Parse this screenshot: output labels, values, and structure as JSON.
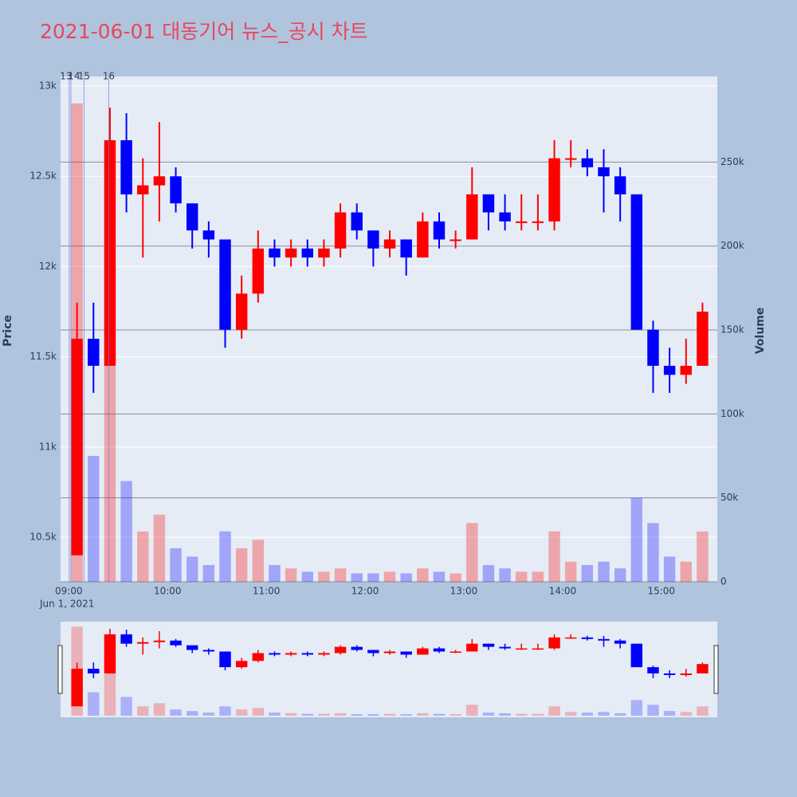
{
  "chart_data": {
    "type": "candlestick",
    "title": "2021-06-01 대동기어 뉴스_공시 차트",
    "y_title": "Price",
    "y2_title": "Volume",
    "x_date_label": "Jun 1, 2021",
    "increasing_color": "#ff0000",
    "decreasing_color": "#0000ff",
    "xlim": [
      "2021-06-01 08:55",
      "2021-06-01 15:34"
    ],
    "xticks": [
      {
        "value": "2021-06-01 09:00",
        "label": "09:00"
      },
      {
        "value": "2021-06-01 10:00",
        "label": "10:00"
      },
      {
        "value": "2021-06-01 11:00",
        "label": "11:00"
      },
      {
        "value": "2021-06-01 12:00",
        "label": "12:00"
      },
      {
        "value": "2021-06-01 13:00",
        "label": "13:00"
      },
      {
        "value": "2021-06-01 14:00",
        "label": "14:00"
      },
      {
        "value": "2021-06-01 15:00",
        "label": "15:00"
      }
    ],
    "ylim": [
      10253,
      13053
    ],
    "yticks": [
      {
        "value": 10500,
        "label": "10.5k"
      },
      {
        "value": 11000,
        "label": "11k"
      },
      {
        "value": 11500,
        "label": "11.5k"
      },
      {
        "value": 12000,
        "label": "12k"
      },
      {
        "value": 12500,
        "label": "12.5k"
      },
      {
        "value": 13000,
        "label": "13k"
      }
    ],
    "y2lim": [
      0,
      301000
    ],
    "y2ticks": [
      0,
      {
        "value": 50000,
        "label": "50k"
      },
      {
        "value": 100000,
        "label": "100k"
      },
      {
        "value": 150000,
        "label": "150k"
      },
      {
        "value": 200000,
        "label": "200k"
      },
      {
        "value": 250000,
        "label": "250k"
      }
    ],
    "annotations": [
      {
        "x": "2021-06-01 09:00",
        "text": "13"
      },
      {
        "x": "2021-06-01 09:01",
        "text": "14"
      },
      {
        "x": "2021-06-01 09:09",
        "text": "15"
      },
      {
        "x": "2021-06-01 09:24",
        "text": "16"
      }
    ],
    "x": [
      "2021-06-01 09:00",
      "2021-06-01 09:10",
      "2021-06-01 09:20",
      "2021-06-01 09:30",
      "2021-06-01 09:40",
      "2021-06-01 09:50",
      "2021-06-01 10:00",
      "2021-06-01 10:10",
      "2021-06-01 10:20",
      "2021-06-01 10:30",
      "2021-06-01 10:40",
      "2021-06-01 10:50",
      "2021-06-01 11:00",
      "2021-06-01 11:10",
      "2021-06-01 11:20",
      "2021-06-01 11:30",
      "2021-06-01 11:40",
      "2021-06-01 11:50",
      "2021-06-01 12:00",
      "2021-06-01 12:10",
      "2021-06-01 12:20",
      "2021-06-01 12:30",
      "2021-06-01 12:40",
      "2021-06-01 12:50",
      "2021-06-01 13:00",
      "2021-06-01 13:10",
      "2021-06-01 13:20",
      "2021-06-01 13:30",
      "2021-06-01 13:40",
      "2021-06-01 13:50",
      "2021-06-01 14:00",
      "2021-06-01 14:10",
      "2021-06-01 14:20",
      "2021-06-01 14:30",
      "2021-06-01 14:40",
      "2021-06-01 14:50",
      "2021-06-01 15:00",
      "2021-06-01 15:10",
      "2021-06-01 15:20"
    ],
    "open": [
      10400,
      11600,
      11450,
      12700,
      12400,
      12450,
      12500,
      12350,
      12200,
      12150,
      11650,
      11850,
      12100,
      12050,
      12100,
      12050,
      12100,
      12300,
      12200,
      12100,
      12150,
      12050,
      12250,
      12150,
      12150,
      12400,
      12300,
      12250,
      12250,
      12250,
      12600,
      12600,
      12550,
      12500,
      12400,
      11650,
      11450,
      11400,
      11450
    ],
    "high": [
      11800,
      11800,
      12880,
      12850,
      12600,
      12800,
      12550,
      12350,
      12250,
      12150,
      11950,
      12200,
      12150,
      12150,
      12150,
      12150,
      12350,
      12350,
      12200,
      12200,
      12150,
      12300,
      12300,
      12200,
      12550,
      12400,
      12400,
      12400,
      12400,
      12700,
      12700,
      12650,
      12650,
      12550,
      12400,
      11700,
      11550,
      11600,
      11800
    ],
    "low": [
      10400,
      11300,
      11450,
      12300,
      12050,
      12250,
      12300,
      12100,
      12050,
      11550,
      11600,
      11800,
      12000,
      12000,
      12000,
      12000,
      12050,
      12150,
      12000,
      12050,
      11950,
      12050,
      12100,
      12100,
      12150,
      12200,
      12200,
      12200,
      12200,
      12200,
      12550,
      12500,
      12300,
      12250,
      11650,
      11300,
      11300,
      11350,
      11450
    ],
    "close": [
      11600,
      11450,
      12700,
      12400,
      12450,
      12500,
      12350,
      12200,
      12150,
      11650,
      11850,
      12100,
      12050,
      12100,
      12050,
      12100,
      12300,
      12200,
      12100,
      12150,
      12050,
      12250,
      12150,
      12150,
      12400,
      12300,
      12250,
      12250,
      12250,
      12600,
      12600,
      12550,
      12500,
      12400,
      11650,
      11450,
      11400,
      11450,
      11750
    ],
    "volume": [
      285000,
      75000,
      190000,
      60000,
      30000,
      40000,
      20000,
      15000,
      10000,
      30000,
      20000,
      25000,
      10000,
      8000,
      6000,
      6000,
      8000,
      5000,
      5000,
      6000,
      5000,
      8000,
      6000,
      5000,
      35000,
      10000,
      8000,
      6000,
      6000,
      30000,
      12000,
      10000,
      12000,
      8000,
      50000,
      35000,
      15000,
      12000,
      30000
    ]
  }
}
